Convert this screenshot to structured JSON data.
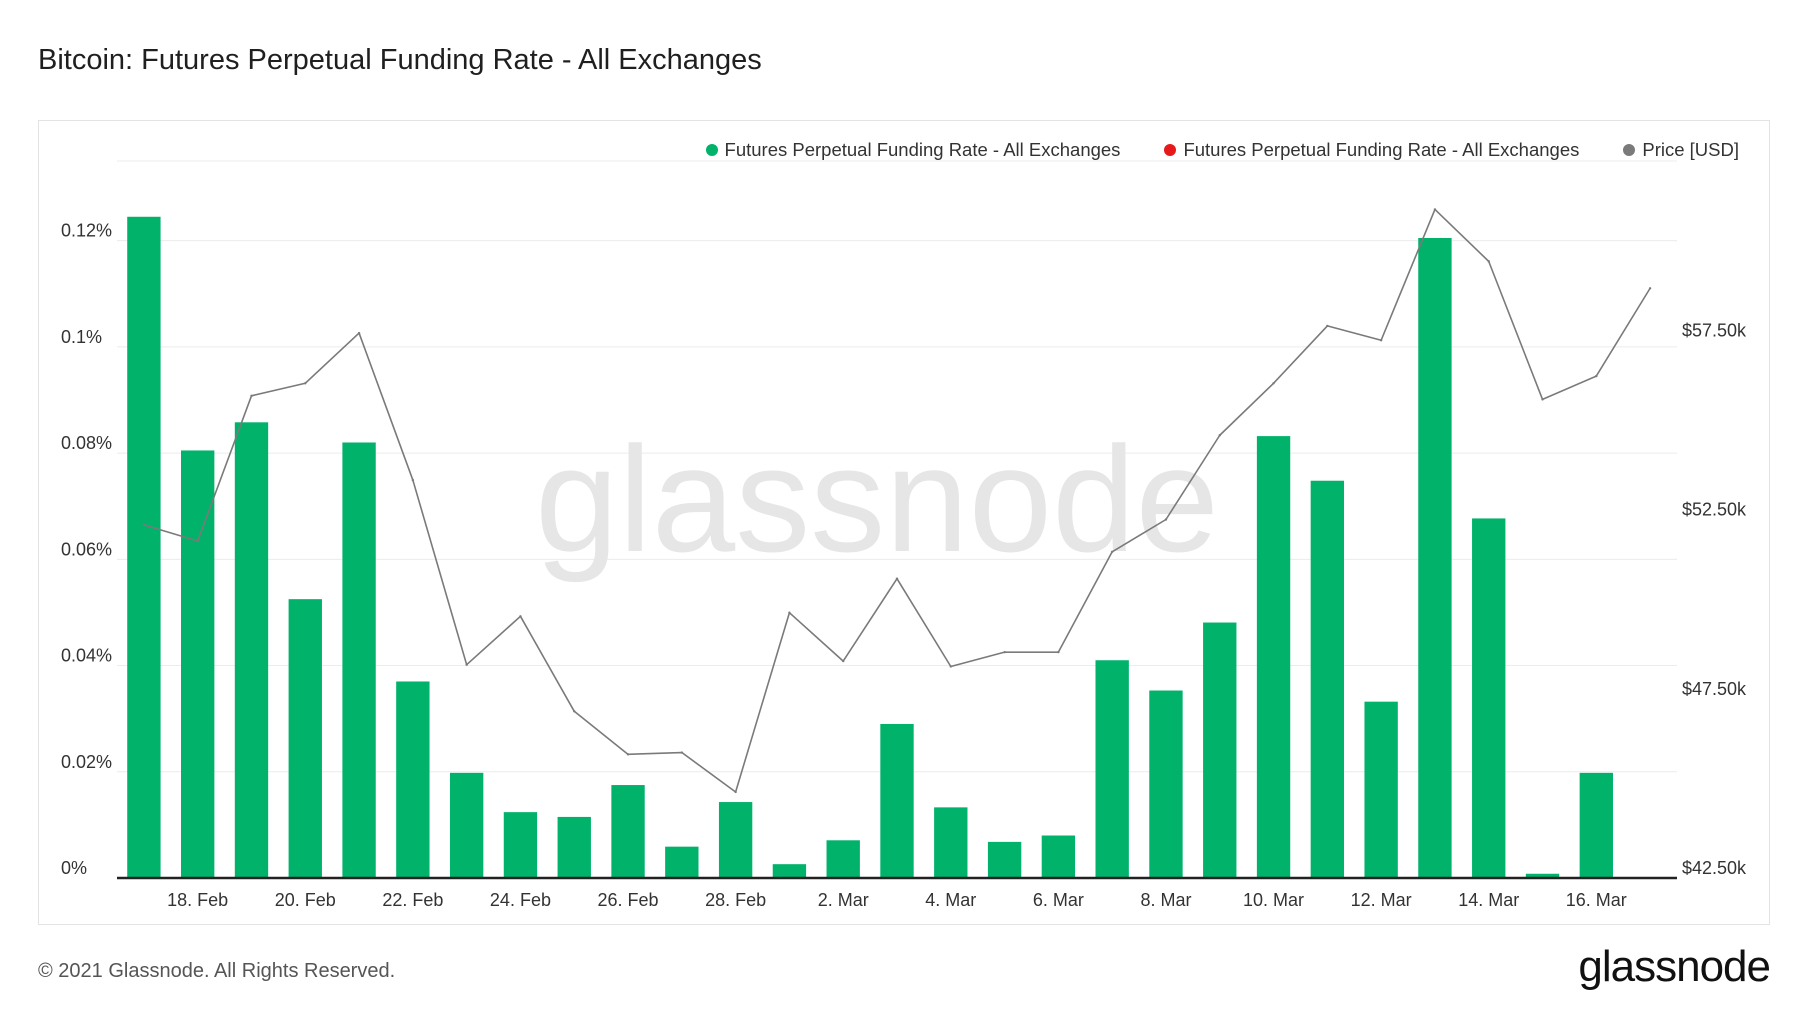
{
  "page": {
    "title": "Bitcoin: Futures Perpetual Funding Rate - All Exchanges",
    "copyright": "© 2021 Glassnode. All Rights Reserved.",
    "logo_text": "glassnode",
    "watermark": "glassnode"
  },
  "legend": [
    {
      "label": "Futures Perpetual Funding Rate - All Exchanges",
      "color": "#00b26a"
    },
    {
      "label": "Futures Perpetual Funding Rate - All Exchanges",
      "color": "#e8191b"
    },
    {
      "label": "Price [USD]",
      "color": "#7a7a7a"
    }
  ],
  "chart_data": {
    "type": "bar+line",
    "title": "Bitcoin: Futures Perpetual Funding Rate - All Exchanges",
    "dates": [
      "17 Feb",
      "18 Feb",
      "19 Feb",
      "20 Feb",
      "21 Feb",
      "22 Feb",
      "23 Feb",
      "24 Feb",
      "25 Feb",
      "26 Feb",
      "27 Feb",
      "28 Feb",
      "1 Mar",
      "2 Mar",
      "3 Mar",
      "4 Mar",
      "5 Mar",
      "6 Mar",
      "7 Mar",
      "8 Mar",
      "9 Mar",
      "10 Mar",
      "11 Mar",
      "12 Mar",
      "13 Mar",
      "14 Mar",
      "15 Mar",
      "16 Mar",
      "17 Mar"
    ],
    "x_tick_labels": [
      "18. Feb",
      "20. Feb",
      "22. Feb",
      "24. Feb",
      "26. Feb",
      "28. Feb",
      "2. Mar",
      "4. Mar",
      "6. Mar",
      "8. Mar",
      "10. Mar",
      "12. Mar",
      "14. Mar",
      "16. Mar"
    ],
    "x_tick_indices": [
      1,
      3,
      5,
      7,
      9,
      11,
      13,
      15,
      17,
      19,
      21,
      23,
      25,
      27
    ],
    "series": [
      {
        "name": "Futures Perpetual Funding Rate - All Exchanges",
        "axis": "left",
        "type": "bar",
        "color": "#00b26a",
        "unit": "%",
        "values": [
          0.1245,
          0.0805,
          0.0858,
          0.0525,
          0.082,
          0.037,
          0.0198,
          0.0124,
          0.0115,
          0.0175,
          0.0059,
          0.0143,
          0.0026,
          0.0071,
          0.029,
          0.0133,
          0.0068,
          0.008,
          0.041,
          0.0353,
          0.0481,
          0.0832,
          0.0748,
          0.0332,
          0.1205,
          0.0677,
          0.0008,
          0.0198,
          null
        ]
      },
      {
        "name": "Price [USD]",
        "axis": "right",
        "type": "line",
        "color": "#7a7a7a",
        "values": [
          52350,
          51900,
          55950,
          56300,
          57700,
          53600,
          48450,
          49800,
          47150,
          45950,
          46000,
          44900,
          49900,
          48550,
          50850,
          48400,
          48800,
          48800,
          51600,
          52500,
          54850,
          56300,
          57900,
          57500,
          61150,
          59700,
          55850,
          56500,
          58950
        ]
      }
    ],
    "y_left": {
      "min": 0,
      "max": 0.135,
      "ticks": [
        0,
        0.02,
        0.04,
        0.06,
        0.08,
        0.1,
        0.12
      ],
      "tick_labels": [
        "0%",
        "0.02%",
        "0.04%",
        "0.06%",
        "0.08%",
        "0.1%",
        "0.12%"
      ]
    },
    "y_right": {
      "min": 42500,
      "max": 62500,
      "ticks": [
        42500,
        47500,
        52500,
        57500
      ],
      "tick_labels": [
        "$42.50k",
        "$47.50k",
        "$52.50k",
        "$57.50k"
      ]
    },
    "grid": true,
    "legend_position": "top-right"
  }
}
